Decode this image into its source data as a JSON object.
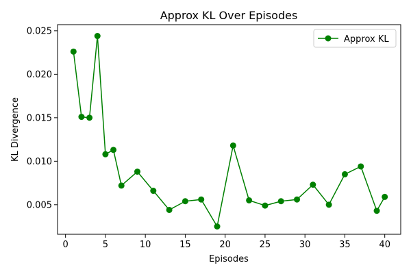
{
  "chart_data": {
    "type": "line",
    "title": "Approx KL Over Episodes",
    "xlabel": "Episodes",
    "ylabel": "KL Divergence",
    "xlim": [
      -1,
      42
    ],
    "ylim": [
      0.0016,
      0.0257
    ],
    "xticks": [
      0,
      5,
      10,
      15,
      20,
      25,
      30,
      35,
      40
    ],
    "yticks": [
      0.005,
      0.01,
      0.015,
      0.02,
      0.025
    ],
    "ytick_labels": [
      "0.005",
      "0.010",
      "0.015",
      "0.020",
      "0.025"
    ],
    "grid": false,
    "legend_position": "top-right",
    "series": [
      {
        "name": "Approx KL",
        "color": "#008000",
        "marker": "circle",
        "x": [
          1,
          2,
          3,
          4,
          5,
          6,
          7,
          9,
          11,
          13,
          15,
          17,
          19,
          21,
          23,
          25,
          27,
          29,
          31,
          33,
          35,
          37,
          39,
          40
        ],
        "y": [
          0.0226,
          0.0151,
          0.015,
          0.0244,
          0.0108,
          0.0113,
          0.0072,
          0.0088,
          0.0066,
          0.0044,
          0.0054,
          0.0056,
          0.0025,
          0.0118,
          0.0055,
          0.0049,
          0.0054,
          0.0056,
          0.0073,
          0.005,
          0.0085,
          0.0094,
          0.0043,
          0.0059
        ]
      }
    ]
  }
}
